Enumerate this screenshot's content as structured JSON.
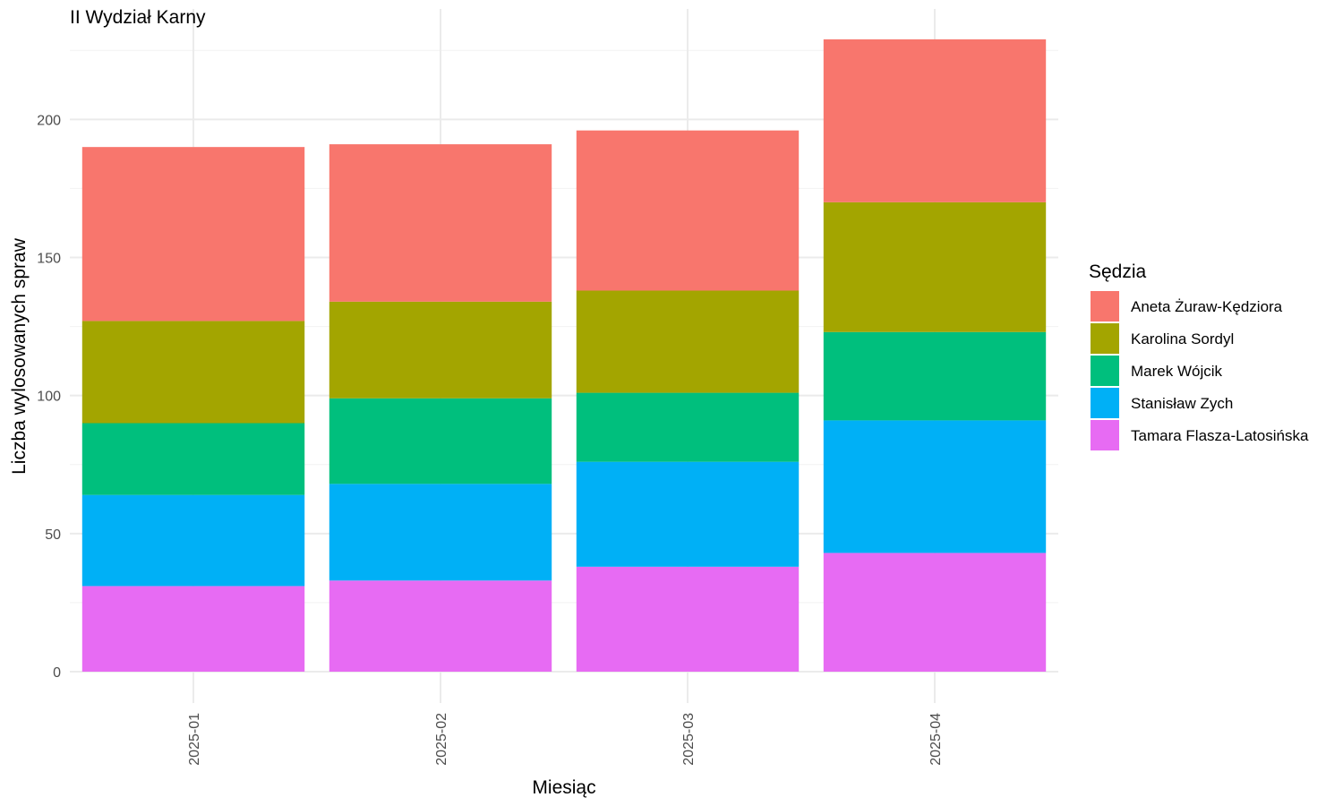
{
  "chart_data": {
    "type": "bar",
    "stacked": true,
    "title": "II Wydział Karny",
    "xlabel": "Miesiąc",
    "ylabel": "Liczba wylosowanych spraw",
    "categories": [
      "2025-01",
      "2025-02",
      "2025-03",
      "2025-04"
    ],
    "ylim": [
      0,
      240
    ],
    "y_ticks": [
      0,
      50,
      100,
      150,
      200
    ],
    "grid": true,
    "legend": {
      "title": "Sędzia",
      "position": "right"
    },
    "series": [
      {
        "name": "Tamara Flasza-Latosińska",
        "color": "#E76BF3",
        "values": [
          31,
          33,
          38,
          43
        ]
      },
      {
        "name": "Stanisław Zych",
        "color": "#00B0F6",
        "values": [
          33,
          35,
          38,
          48
        ]
      },
      {
        "name": "Marek Wójcik",
        "color": "#00BF7D",
        "values": [
          26,
          31,
          25,
          32
        ]
      },
      {
        "name": "Karolina Sordyl",
        "color": "#A3A500",
        "values": [
          37,
          35,
          37,
          47
        ]
      },
      {
        "name": "Aneta Żuraw-Kędziora",
        "color": "#F8766D",
        "values": [
          63,
          57,
          58,
          59
        ]
      }
    ],
    "legend_order": [
      "Aneta Żuraw-Kędziora",
      "Karolina Sordyl",
      "Marek Wójcik",
      "Stanisław Zych",
      "Tamara Flasza-Latosińska"
    ]
  }
}
